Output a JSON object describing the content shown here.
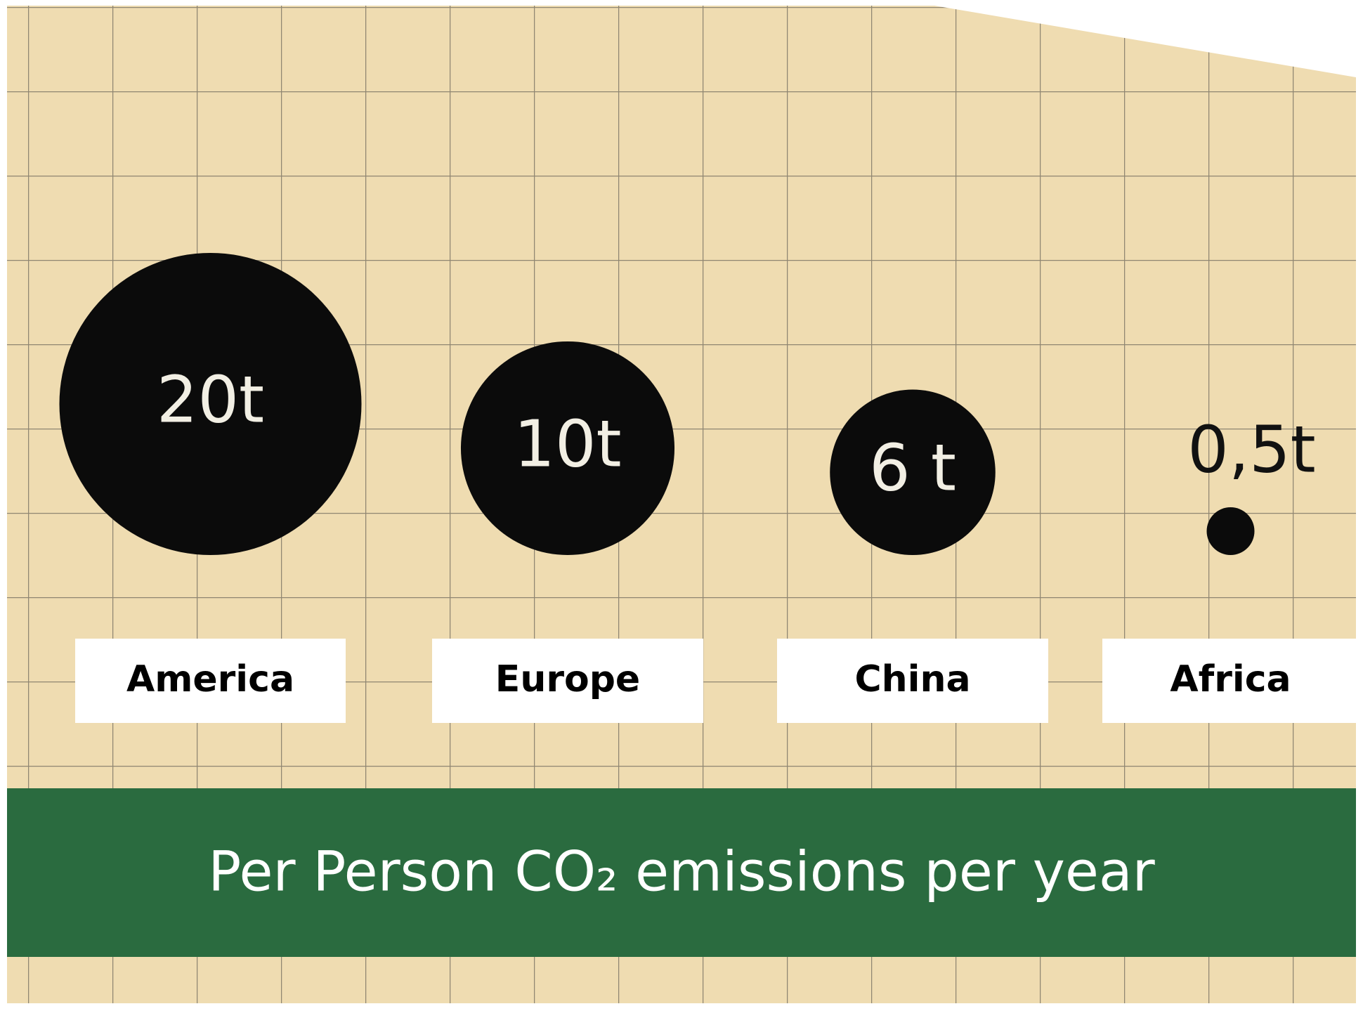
{
  "chart_data": {
    "type": "bubble",
    "title": "Per Person CO₂ emissions per year",
    "categories": [
      "America",
      "Europe",
      "China",
      "Africa"
    ],
    "values": [
      20,
      10,
      6,
      0.5
    ],
    "value_labels": [
      "20t",
      "10t",
      "6 t",
      "0,5t"
    ],
    "color": "#0b0b0b"
  }
}
